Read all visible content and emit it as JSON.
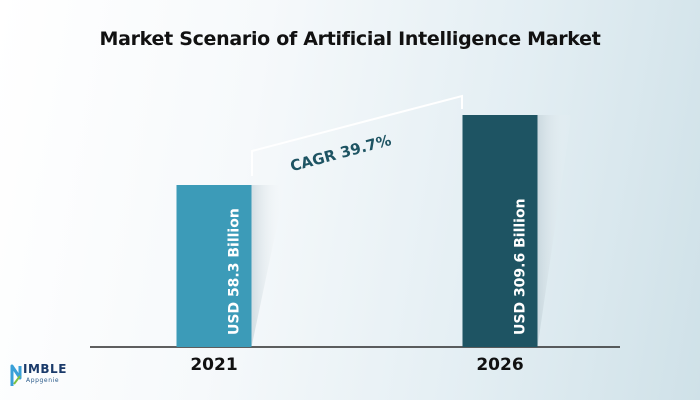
{
  "chart_data": {
    "type": "bar",
    "title": "Market Scenario of Artificial Intelligence Market",
    "categories": [
      "2021",
      "2026"
    ],
    "values": [
      58.3,
      309.6
    ],
    "data_labels": [
      "USD 58.3 Billion",
      "USD 309.6 Billion"
    ],
    "annotation": "CAGR  39.7%",
    "bar_colors": [
      "#3c9bb8",
      "#1e5463"
    ],
    "xlabel": "",
    "ylabel": "",
    "grid": false
  },
  "brand": {
    "name": "IMBLE",
    "sub": "Appgenie",
    "icon": "nimble-n-logo-icon"
  }
}
